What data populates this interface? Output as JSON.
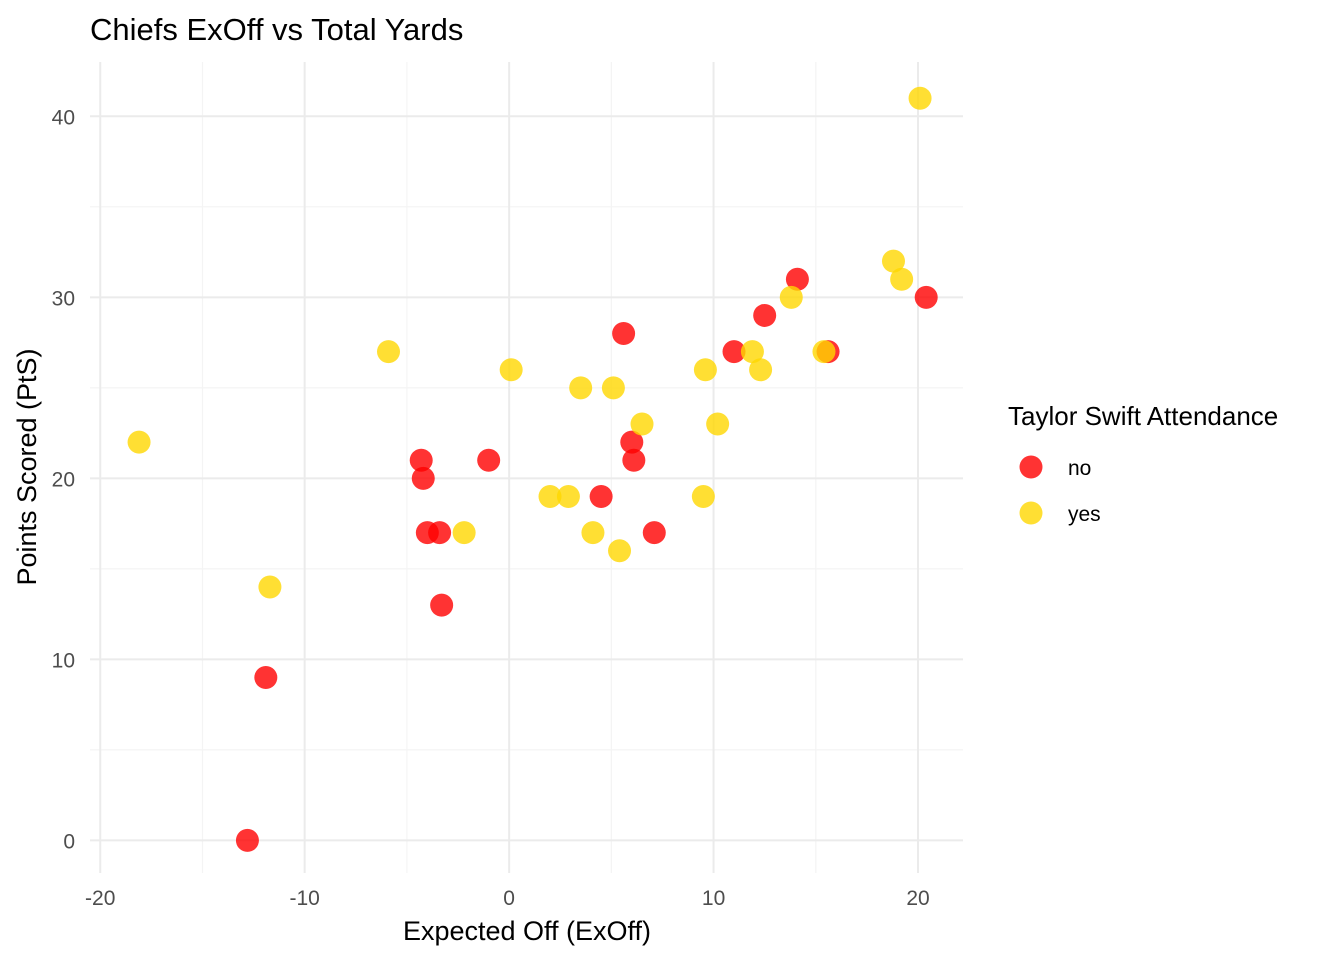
{
  "chart_data": {
    "type": "scatter",
    "title": "Chiefs ExOff vs Total Yards",
    "xlabel": "Expected Off (ExOff)",
    "ylabel": "Points Scored (PtS)",
    "xlim": [
      -20.5,
      22.2
    ],
    "ylim": [
      -1.8,
      43.0
    ],
    "x_ticks": [
      -20,
      -10,
      0,
      10,
      20
    ],
    "y_ticks": [
      0,
      10,
      20,
      30,
      40
    ],
    "x_tick_labels": [
      "-20",
      "-10",
      "0",
      "10",
      "20"
    ],
    "y_tick_labels": [
      "0",
      "10",
      "20",
      "30",
      "40"
    ],
    "grid": true,
    "legend": {
      "title": "Taylor Swift Attendance",
      "placement": "right",
      "entries": [
        {
          "label": "no",
          "color": "#ff0000"
        },
        {
          "label": "yes",
          "color": "#ffd700"
        }
      ]
    },
    "series": [
      {
        "name": "no",
        "color": "#ff0000",
        "points": [
          {
            "x": -12.8,
            "y": 0
          },
          {
            "x": -11.9,
            "y": 9
          },
          {
            "x": -4.3,
            "y": 21
          },
          {
            "x": -4.2,
            "y": 20
          },
          {
            "x": -4.0,
            "y": 17
          },
          {
            "x": -3.4,
            "y": 17
          },
          {
            "x": -3.3,
            "y": 13
          },
          {
            "x": -1.0,
            "y": 21
          },
          {
            "x": 4.5,
            "y": 19
          },
          {
            "x": 5.6,
            "y": 28
          },
          {
            "x": 6.0,
            "y": 22
          },
          {
            "x": 6.1,
            "y": 21
          },
          {
            "x": 7.1,
            "y": 17
          },
          {
            "x": 11.0,
            "y": 27
          },
          {
            "x": 12.5,
            "y": 29
          },
          {
            "x": 14.1,
            "y": 31
          },
          {
            "x": 15.6,
            "y": 27
          },
          {
            "x": 20.4,
            "y": 30
          }
        ]
      },
      {
        "name": "yes",
        "color": "#ffd700",
        "points": [
          {
            "x": -18.1,
            "y": 22
          },
          {
            "x": -11.7,
            "y": 14
          },
          {
            "x": -5.9,
            "y": 27
          },
          {
            "x": -2.2,
            "y": 17
          },
          {
            "x": 0.1,
            "y": 26
          },
          {
            "x": 2.0,
            "y": 19
          },
          {
            "x": 2.9,
            "y": 19
          },
          {
            "x": 3.5,
            "y": 25
          },
          {
            "x": 4.1,
            "y": 17
          },
          {
            "x": 5.1,
            "y": 25
          },
          {
            "x": 5.4,
            "y": 16
          },
          {
            "x": 6.5,
            "y": 23
          },
          {
            "x": 9.5,
            "y": 19
          },
          {
            "x": 9.6,
            "y": 26
          },
          {
            "x": 10.2,
            "y": 23
          },
          {
            "x": 11.9,
            "y": 27
          },
          {
            "x": 12.3,
            "y": 26
          },
          {
            "x": 13.8,
            "y": 30
          },
          {
            "x": 15.4,
            "y": 27
          },
          {
            "x": 18.8,
            "y": 32
          },
          {
            "x": 19.2,
            "y": 31
          },
          {
            "x": 20.1,
            "y": 41
          }
        ]
      }
    ]
  }
}
